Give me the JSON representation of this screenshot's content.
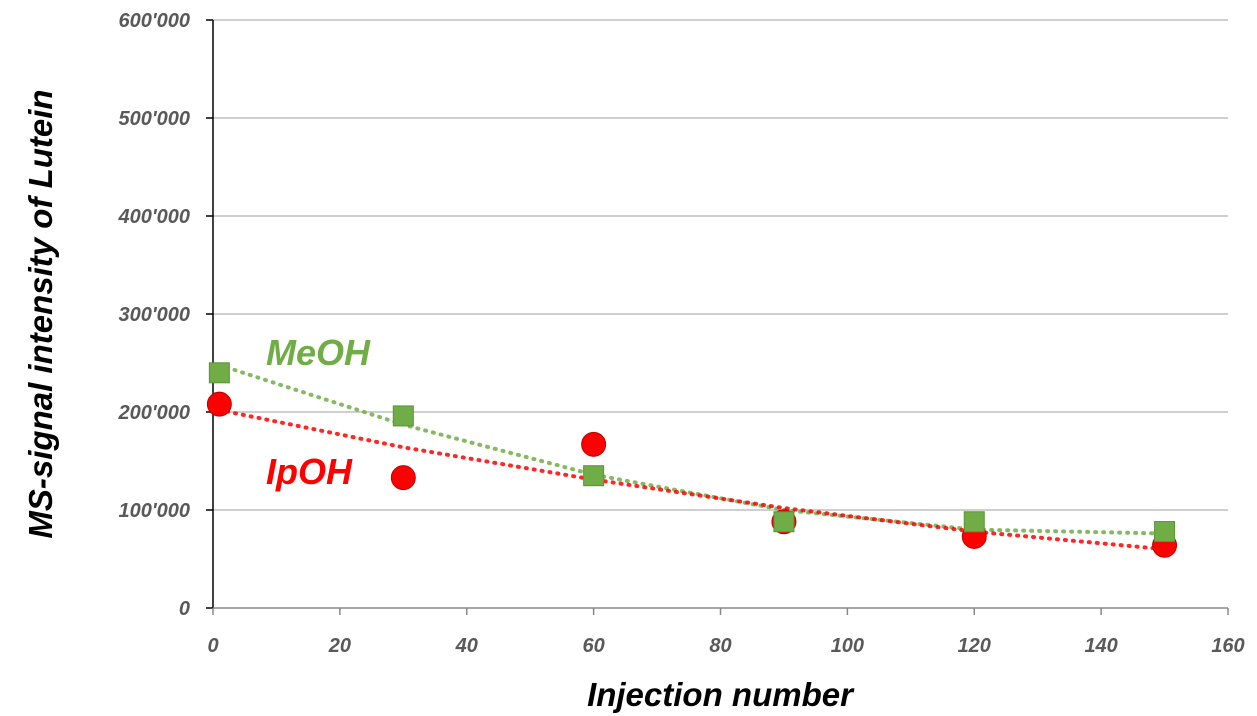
{
  "chart_data": {
    "type": "scatter",
    "xlabel": "Injection number",
    "ylabel": "MS-signal intensity of Lutein",
    "xlim": [
      0,
      160
    ],
    "ylim": [
      0,
      600000
    ],
    "x_ticks": [
      0,
      20,
      40,
      60,
      80,
      100,
      120,
      140,
      160
    ],
    "y_ticks": [
      0,
      100000,
      200000,
      300000,
      400000,
      500000,
      600000
    ],
    "x_tick_labels": [
      "0",
      "20",
      "40",
      "60",
      "80",
      "100",
      "120",
      "140",
      "160"
    ],
    "y_tick_labels": [
      "0",
      "100'000",
      "200'000",
      "300'000",
      "400'000",
      "500'000",
      "600'000"
    ],
    "grid": "horizontal",
    "series": [
      {
        "name": "MeOH",
        "marker": "square",
        "color": "#70AD47",
        "trendline": "dotted",
        "x": [
          1,
          30,
          60,
          90,
          120,
          150
        ],
        "y": [
          240000,
          196000,
          135000,
          88000,
          88000,
          78000
        ],
        "trend_y": [
          248000,
          187000,
          136000,
          100000,
          80000,
          76000
        ]
      },
      {
        "name": "IpOH",
        "marker": "circle",
        "color": "#FF0000",
        "trendline": "dotted",
        "x": [
          1,
          30,
          60,
          90,
          120,
          150
        ],
        "y": [
          208000,
          133000,
          167000,
          88000,
          73000,
          64000
        ],
        "trend_y": [
          202000,
          164000,
          131000,
          102000,
          78000,
          60000
        ]
      }
    ]
  }
}
